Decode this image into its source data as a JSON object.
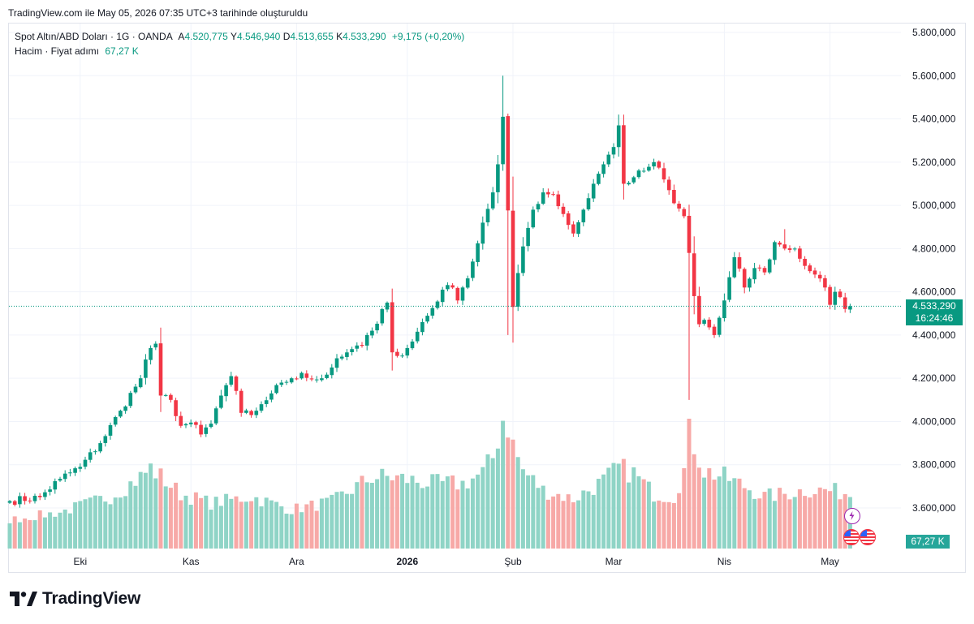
{
  "snapshot_text": "TradingView.com ile May 05, 2026 07:35 UTC+3 tarihinde oluşturuldu",
  "legend": {
    "symbol": "Spot Altın/ABD Doları · 1G · OANDA",
    "open_label": "A",
    "open": "4.520,775",
    "high_label": "Y",
    "high": "4.546,940",
    "low_label": "D",
    "low": "4.513,655",
    "close_label": "K",
    "close": "4.533,290",
    "change": "+9,175 (+0,20%)",
    "volume_label": "Hacim · Fiyat adımı",
    "volume_value": "67,27 K"
  },
  "last_price": {
    "value": "4.533,290",
    "countdown": "16:24:46"
  },
  "volume_tag": "67,27 K",
  "logo_text": "TradingView",
  "colors": {
    "up": "#089981",
    "down": "#f23645",
    "vol_up": "#8fd4c6",
    "vol_down": "#f7a9a7",
    "grid": "#f0f3fa",
    "text": "#131722"
  },
  "icons": [
    "lightning-icon",
    "us-flag-icon",
    "us-flag-icon"
  ],
  "chart_data": {
    "type": "candlestick",
    "y_axis": {
      "min": 3600000,
      "max": 5800000,
      "tick_step": 200000,
      "tick_labels": [
        "5.800,000",
        "5.600,000",
        "5.400,000",
        "5.200,000",
        "5.000,000",
        "4.800,000",
        "4.600,000",
        "4.400,000",
        "4.200,000",
        "4.000,000",
        "3.800,000",
        "3.600,000"
      ]
    },
    "x_axis": {
      "labels": [
        {
          "text": "Eki",
          "index": 14,
          "bold": false
        },
        {
          "text": "Kas",
          "index": 36,
          "bold": false
        },
        {
          "text": "Ara",
          "index": 57,
          "bold": false
        },
        {
          "text": "2026",
          "index": 79,
          "bold": true
        },
        {
          "text": "Şub",
          "index": 100,
          "bold": false
        },
        {
          "text": "Mar",
          "index": 120,
          "bold": false
        },
        {
          "text": "Nis",
          "index": 142,
          "bold": false
        },
        {
          "text": "May",
          "index": 163,
          "bold": false
        }
      ]
    },
    "grid": true,
    "close_points": [
      [
        0,
        3632000
      ],
      [
        6,
        3650000
      ],
      [
        10,
        3735000
      ],
      [
        14,
        3790000
      ],
      [
        18,
        3900000
      ],
      [
        22,
        4050000
      ],
      [
        26,
        4200000
      ],
      [
        28,
        4340000
      ],
      [
        29,
        4360000
      ],
      [
        30,
        4120000
      ],
      [
        32,
        4100000
      ],
      [
        34,
        3980000
      ],
      [
        36,
        3995000
      ],
      [
        38,
        3940000
      ],
      [
        40,
        3990000
      ],
      [
        42,
        4120000
      ],
      [
        44,
        4210000
      ],
      [
        46,
        4040000
      ],
      [
        48,
        4030000
      ],
      [
        50,
        4080000
      ],
      [
        52,
        4130000
      ],
      [
        54,
        4180000
      ],
      [
        56,
        4200000
      ],
      [
        58,
        4225000
      ],
      [
        60,
        4195000
      ],
      [
        62,
        4200000
      ],
      [
        64,
        4250000
      ],
      [
        66,
        4300000
      ],
      [
        68,
        4335000
      ],
      [
        70,
        4350000
      ],
      [
        72,
        4420000
      ],
      [
        74,
        4520000
      ],
      [
        75,
        4550000
      ],
      [
        76,
        4320000
      ],
      [
        78,
        4305000
      ],
      [
        80,
        4370000
      ],
      [
        82,
        4460000
      ],
      [
        84,
        4525000
      ],
      [
        86,
        4610000
      ],
      [
        88,
        4620000
      ],
      [
        89,
        4560000
      ],
      [
        90,
        4620000
      ],
      [
        92,
        4740000
      ],
      [
        94,
        4920000
      ],
      [
        96,
        5060000
      ],
      [
        97,
        5190000
      ],
      [
        98,
        5410000
      ],
      [
        100,
        4530000
      ],
      [
        102,
        4810000
      ],
      [
        104,
        4980000
      ],
      [
        106,
        5060000
      ],
      [
        108,
        5050000
      ],
      [
        110,
        4960000
      ],
      [
        112,
        4870000
      ],
      [
        114,
        4980000
      ],
      [
        116,
        5100000
      ],
      [
        118,
        5190000
      ],
      [
        120,
        5270000
      ],
      [
        121,
        5370000
      ],
      [
        122,
        5100000
      ],
      [
        124,
        5130000
      ],
      [
        126,
        5160000
      ],
      [
        128,
        5200000
      ],
      [
        130,
        5120000
      ],
      [
        132,
        5010000
      ],
      [
        134,
        4950000
      ],
      [
        135,
        4780000
      ],
      [
        136,
        4580000
      ],
      [
        137,
        4450000
      ],
      [
        138,
        4470000
      ],
      [
        140,
        4400000
      ],
      [
        142,
        4560000
      ],
      [
        144,
        4760000
      ],
      [
        146,
        4620000
      ],
      [
        148,
        4710000
      ],
      [
        150,
        4690000
      ],
      [
        152,
        4830000
      ],
      [
        154,
        4800000
      ],
      [
        156,
        4800000
      ],
      [
        158,
        4720000
      ],
      [
        160,
        4680000
      ],
      [
        162,
        4620000
      ],
      [
        163,
        4540000
      ],
      [
        164,
        4600000
      ],
      [
        166,
        4520775
      ],
      [
        167,
        4533290
      ]
    ],
    "peaks": [
      {
        "index": 98,
        "high": 5600000
      },
      {
        "index": 99,
        "low": 4400000
      },
      {
        "index": 121,
        "high": 5420000
      },
      {
        "index": 135,
        "low": 4100000
      },
      {
        "index": 154,
        "high": 4890000
      }
    ],
    "volume_profile": [
      [
        0,
        0.22
      ],
      [
        10,
        0.28
      ],
      [
        20,
        0.4
      ],
      [
        26,
        0.55
      ],
      [
        28,
        0.62
      ],
      [
        34,
        0.42
      ],
      [
        40,
        0.35
      ],
      [
        48,
        0.4
      ],
      [
        56,
        0.3
      ],
      [
        64,
        0.36
      ],
      [
        72,
        0.55
      ],
      [
        76,
        0.55
      ],
      [
        84,
        0.5
      ],
      [
        90,
        0.5
      ],
      [
        94,
        0.58
      ],
      [
        96,
        0.7
      ],
      [
        98,
        1.0
      ],
      [
        99,
        0.95
      ],
      [
        100,
        0.8
      ],
      [
        102,
        0.6
      ],
      [
        106,
        0.45
      ],
      [
        112,
        0.38
      ],
      [
        118,
        0.52
      ],
      [
        121,
        0.62
      ],
      [
        124,
        0.58
      ],
      [
        128,
        0.42
      ],
      [
        132,
        0.4
      ],
      [
        134,
        0.6
      ],
      [
        135,
        1.0
      ],
      [
        136,
        0.8
      ],
      [
        138,
        0.6
      ],
      [
        142,
        0.55
      ],
      [
        146,
        0.48
      ],
      [
        150,
        0.4
      ],
      [
        154,
        0.42
      ],
      [
        158,
        0.45
      ],
      [
        162,
        0.45
      ],
      [
        166,
        0.43
      ],
      [
        167,
        0.42
      ]
    ]
  }
}
